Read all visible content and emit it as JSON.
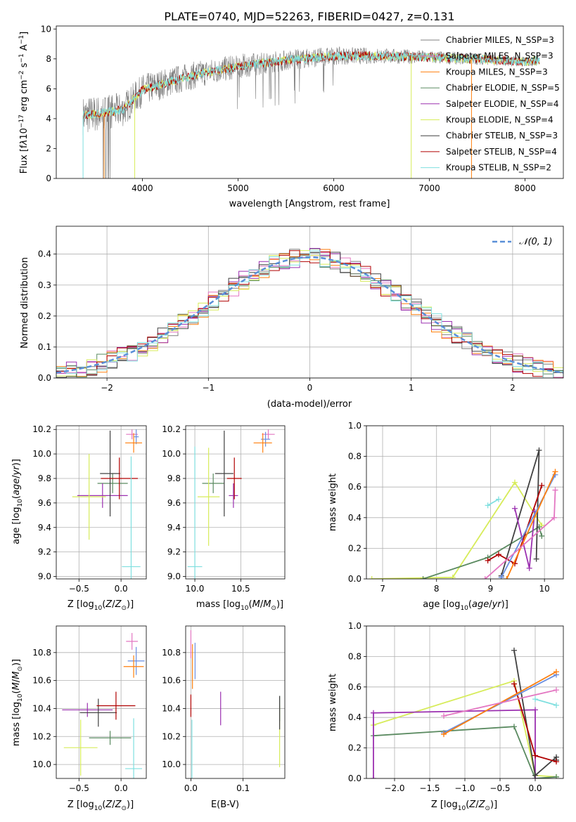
{
  "figure_title": "PLATE=0740, MJD=52263, FIBERID=0427, z=0.131",
  "colors": {
    "chabrier_miles": "#7f7f7f",
    "salpeter_miles": "#e377c2",
    "kroupa_miles": "#ff7f0e",
    "chabrier_elodie": "#5a8a60",
    "salpeter_elodie": "#9b30b0",
    "kroupa_elodie": "#d7ec5a",
    "chabrier_stelib": "#404040",
    "salpeter_stelib": "#b00000",
    "kroupa_stelib": "#7fdfdf",
    "chabrier_miles_alt": "#6a8ee0",
    "gauss": "#5a8fd8"
  },
  "chart_data": [
    {
      "id": "spectrum",
      "type": "line",
      "xlabel": "wavelength [Angstrom, rest frame]",
      "ylabel": "Flux [f_λ10^-17 erg cm^-2 s^-1 A^-1]",
      "xlim": [
        3100,
        8400
      ],
      "ylim": [
        0,
        10.2
      ],
      "xticks": [
        4000,
        5000,
        6000,
        7000,
        8000
      ],
      "yticks": [
        0,
        2,
        4,
        6,
        8,
        10
      ],
      "grid": false,
      "legend_position": "right",
      "x_start": 3380,
      "x_end": 8150,
      "continuum": [
        [
          3380,
          4.2
        ],
        [
          3600,
          4.4
        ],
        [
          3800,
          4.6
        ],
        [
          4000,
          5.9
        ],
        [
          4300,
          6.5
        ],
        [
          4600,
          7.0
        ],
        [
          5000,
          7.5
        ],
        [
          5500,
          7.9
        ],
        [
          6000,
          8.2
        ],
        [
          6500,
          8.2
        ],
        [
          7000,
          8.1
        ],
        [
          7500,
          8.0
        ],
        [
          8000,
          7.8
        ],
        [
          8150,
          7.9
        ]
      ],
      "legend": [
        {
          "label": "Chabrier MILES, N_SSP=3",
          "color_key": "chabrier_miles"
        },
        {
          "label": "Salpeter MILES, N_SSP=3",
          "color_key": "salpeter_miles"
        },
        {
          "label": "Kroupa MILES, N_SSP=3",
          "color_key": "kroupa_miles"
        },
        {
          "label": "Chabrier ELODIE, N_SSP=5",
          "color_key": "chabrier_elodie"
        },
        {
          "label": "Salpeter ELODIE, N_SSP=4",
          "color_key": "salpeter_elodie"
        },
        {
          "label": "Kroupa ELODIE, N_SSP=4",
          "color_key": "kroupa_elodie"
        },
        {
          "label": "Chabrier STELIB, N_SSP=3",
          "color_key": "chabrier_stelib"
        },
        {
          "label": "Salpeter STELIB, N_SSP=4",
          "color_key": "salpeter_stelib"
        },
        {
          "label": "Kroupa STELIB, N_SSP=2",
          "color_key": "kroupa_stelib"
        }
      ]
    },
    {
      "id": "residuals",
      "type": "area",
      "xlabel": "(data-model)/error",
      "ylabel": "Normed distribution",
      "xlim": [
        -2.5,
        2.5
      ],
      "ylim": [
        0,
        0.49
      ],
      "xticks": [
        -2,
        -1,
        0,
        1,
        2
      ],
      "xticklabels": [
        "−2",
        "−1",
        "0",
        "1",
        "2"
      ],
      "yticks": [
        0.0,
        0.1,
        0.2,
        0.3,
        0.4
      ],
      "yticklabels": [
        "0.0",
        "0.1",
        "0.2",
        "0.3",
        "0.4"
      ],
      "grid": true,
      "legend_position": "top-right",
      "gauss_label": "𝒩(0, 1)",
      "bin_width": 0.1,
      "amplitude": 0.39
    },
    {
      "id": "age_vs_Z",
      "type": "scatter",
      "xlabel": "Z [log10(Z/Z⊙)]",
      "ylabel": "age  [log10(age/yr)]",
      "xlim": [
        -0.77,
        0.3
      ],
      "ylim": [
        8.98,
        10.23
      ],
      "xticks": [
        -0.5,
        0.0
      ],
      "xticklabels": [
        "−0.5",
        "0.0"
      ],
      "yticks": [
        9.0,
        9.2,
        9.4,
        9.6,
        9.8,
        10.0,
        10.2
      ],
      "yticklabels": [
        "9.0",
        "9.2",
        "9.4",
        "9.6",
        "9.8",
        "10.0",
        "10.2"
      ],
      "grid": true,
      "points": [
        {
          "x": 0.13,
          "y": 10.16,
          "xerr": 0.07,
          "yerr": 0.04,
          "color_key": "salpeter_miles"
        },
        {
          "x": 0.18,
          "y": 10.14,
          "xerr": 0.03,
          "yerr": 0.06,
          "color_key": "chabrier_miles_alt"
        },
        {
          "x": 0.15,
          "y": 10.09,
          "xerr": 0.1,
          "yerr": 0.08,
          "color_key": "kroupa_miles"
        },
        {
          "x": -0.1,
          "y": 9.76,
          "xerr": 0.18,
          "yerr": 0.08,
          "color_key": "chabrier_elodie"
        },
        {
          "x": -0.22,
          "y": 9.66,
          "xerr": 0.3,
          "yerr": 0.1,
          "color_key": "salpeter_elodie"
        },
        {
          "x": -0.38,
          "y": 9.65,
          "xerr": 0.2,
          "yerr": 0.35,
          "color_key": "kroupa_elodie"
        },
        {
          "x": -0.13,
          "y": 9.84,
          "xerr": 0.12,
          "yerr": 0.35,
          "color_key": "chabrier_stelib"
        },
        {
          "x": -0.02,
          "y": 9.8,
          "xerr": 0.22,
          "yerr": 0.17,
          "color_key": "salpeter_stelib"
        },
        {
          "x": 0.12,
          "y": 9.08,
          "xerr": 0.11,
          "yerr": 0.9,
          "color_key": "kroupa_stelib"
        }
      ]
    },
    {
      "id": "age_vs_mass",
      "type": "scatter",
      "xlabel": "mass [log10(M/M⊙)]",
      "ylabel": "",
      "xlim": [
        9.9,
        10.98
      ],
      "ylim": [
        8.98,
        10.23
      ],
      "xticks": [
        10.0,
        10.5
      ],
      "xticklabels": [
        "10.0",
        "10.5"
      ],
      "yticks": [
        9.0,
        9.2,
        9.4,
        9.6,
        9.8,
        10.0,
        10.2
      ],
      "yticklabels": [
        "9.0",
        "9.2",
        "9.4",
        "9.6",
        "9.8",
        "10.0",
        "10.2"
      ],
      "grid": true,
      "points": [
        {
          "x": 10.8,
          "y": 10.16,
          "xerr": 0.07,
          "yerr": 0.04,
          "color_key": "salpeter_miles"
        },
        {
          "x": 10.77,
          "y": 10.12,
          "xerr": 0.05,
          "yerr": 0.06,
          "color_key": "chabrier_miles_alt"
        },
        {
          "x": 10.74,
          "y": 10.09,
          "xerr": 0.1,
          "yerr": 0.08,
          "color_key": "kroupa_miles"
        },
        {
          "x": 10.2,
          "y": 9.76,
          "xerr": 0.12,
          "yerr": 0.08,
          "color_key": "chabrier_elodie"
        },
        {
          "x": 10.42,
          "y": 9.66,
          "xerr": 0.05,
          "yerr": 0.1,
          "color_key": "salpeter_elodie"
        },
        {
          "x": 10.15,
          "y": 9.65,
          "xerr": 0.12,
          "yerr": 0.4,
          "color_key": "kroupa_elodie"
        },
        {
          "x": 10.32,
          "y": 9.84,
          "xerr": 0.1,
          "yerr": 0.35,
          "color_key": "chabrier_stelib"
        },
        {
          "x": 10.43,
          "y": 9.8,
          "xerr": 0.08,
          "yerr": 0.17,
          "color_key": "salpeter_stelib"
        },
        {
          "x": 10.0,
          "y": 9.08,
          "xerr": 0.08,
          "yerr": 0.98,
          "color_key": "kroupa_stelib"
        }
      ]
    },
    {
      "id": "weight_vs_age",
      "type": "line",
      "xlabel": "age  [log10(age/yr)]",
      "ylabel": "mass weight",
      "xlim": [
        6.7,
        10.35
      ],
      "ylim": [
        0,
        1.0
      ],
      "xticks": [
        7,
        8,
        9,
        10
      ],
      "xticklabels": [
        "7",
        "8",
        "9",
        "10"
      ],
      "yticks": [
        0.0,
        0.2,
        0.4,
        0.6,
        0.8,
        1.0
      ],
      "yticklabels": [
        "0.0",
        "0.2",
        "0.4",
        "0.6",
        "0.8",
        "1.0"
      ],
      "grid": true,
      "series": [
        {
          "color_key": "kroupa_elodie",
          "x": [
            6.8,
            8.3,
            9.45,
            9.95
          ],
          "y": [
            0.0,
            0.01,
            0.63,
            0.35
          ]
        },
        {
          "color_key": "chabrier_elodie",
          "x": [
            7.75,
            8.95,
            9.9,
            9.95
          ],
          "y": [
            0.0,
            0.14,
            0.34,
            0.28
          ]
        },
        {
          "color_key": "chabrier_stelib",
          "x": [
            9.2,
            9.9,
            9.85
          ],
          "y": [
            0.02,
            0.84,
            0.13
          ]
        },
        {
          "color_key": "salpeter_stelib",
          "x": [
            8.95,
            9.15,
            9.45,
            9.95
          ],
          "y": [
            0.12,
            0.16,
            0.1,
            0.61
          ]
        },
        {
          "color_key": "salpeter_elodie",
          "x": [
            9.45,
            9.72,
            9.82
          ],
          "y": [
            0.46,
            0.07,
            0.44
          ]
        },
        {
          "color_key": "chabrier_miles_alt",
          "x": [
            9.2,
            10.2
          ],
          "y": [
            0.01,
            0.68
          ]
        },
        {
          "color_key": "kroupa_miles",
          "x": [
            9.3,
            10.2
          ],
          "y": [
            0.0,
            0.7
          ]
        },
        {
          "color_key": "salpeter_miles",
          "x": [
            8.9,
            10.18,
            10.2
          ],
          "y": [
            0.0,
            0.4,
            0.58
          ]
        },
        {
          "color_key": "kroupa_stelib",
          "x": [
            8.95,
            9.15
          ],
          "y": [
            0.48,
            0.52
          ]
        }
      ]
    },
    {
      "id": "mass_vs_Z",
      "type": "scatter",
      "xlabel": "Z [log10(Z/Z⊙)]",
      "ylabel": "mass [log10(M/M⊙)]",
      "xlim": [
        -0.77,
        0.3
      ],
      "ylim": [
        9.9,
        10.99
      ],
      "xticks": [
        -0.5,
        0.0
      ],
      "xticklabels": [
        "−0.5",
        "0.0"
      ],
      "yticks": [
        10.0,
        10.2,
        10.4,
        10.6,
        10.8
      ],
      "yticklabels": [
        "10.0",
        "10.2",
        "10.4",
        "10.6",
        "10.8"
      ],
      "grid": true,
      "points": [
        {
          "x": 0.13,
          "y": 10.88,
          "xerr": 0.07,
          "yerr": 0.06,
          "color_key": "salpeter_miles"
        },
        {
          "x": 0.18,
          "y": 10.74,
          "xerr": 0.1,
          "yerr": 0.1,
          "color_key": "chabrier_miles_alt"
        },
        {
          "x": 0.15,
          "y": 10.7,
          "xerr": 0.12,
          "yerr": 0.08,
          "color_key": "kroupa_miles"
        },
        {
          "x": -0.13,
          "y": 10.19,
          "xerr": 0.25,
          "yerr": 0.05,
          "color_key": "chabrier_elodie"
        },
        {
          "x": -0.4,
          "y": 10.39,
          "xerr": 0.3,
          "yerr": 0.05,
          "color_key": "salpeter_elodie"
        },
        {
          "x": -0.48,
          "y": 10.12,
          "xerr": 0.2,
          "yerr": 0.2,
          "color_key": "kroupa_elodie"
        },
        {
          "x": -0.27,
          "y": 10.37,
          "xerr": 0.22,
          "yerr": 0.1,
          "color_key": "chabrier_stelib"
        },
        {
          "x": -0.06,
          "y": 10.42,
          "xerr": 0.23,
          "yerr": 0.1,
          "color_key": "salpeter_stelib"
        },
        {
          "x": 0.15,
          "y": 9.97,
          "xerr": 0.1,
          "yerr": 0.36,
          "color_key": "kroupa_stelib"
        }
      ]
    },
    {
      "id": "mass_vs_EBV",
      "type": "scatter",
      "xlabel": "E(B-V)",
      "ylabel": "",
      "xlim": [
        -0.01,
        0.18
      ],
      "ylim": [
        9.9,
        10.99
      ],
      "xticks": [
        0.0,
        0.1
      ],
      "xticklabels": [
        "0.0",
        "0.1"
      ],
      "yticks": [
        10.0,
        10.2,
        10.4,
        10.6,
        10.8
      ],
      "yticklabels": [
        "10.0",
        "10.2",
        "10.4",
        "10.6",
        "10.8"
      ],
      "grid": true,
      "points": [
        {
          "x": 0.0,
          "y": 10.86,
          "yerr": 0.1,
          "color_key": "salpeter_miles"
        },
        {
          "x": 0.008,
          "y": 10.74,
          "yerr": 0.13,
          "color_key": "chabrier_miles_alt"
        },
        {
          "x": 0.003,
          "y": 10.7,
          "yerr": 0.16,
          "color_key": "kroupa_miles"
        },
        {
          "x": 0.17,
          "y": 10.2,
          "yerr": 0.22,
          "color_key": "kroupa_elodie"
        },
        {
          "x": 0.17,
          "y": 10.4,
          "yerr": 0.09,
          "color_key": "chabrier_elodie"
        },
        {
          "x": 0.057,
          "y": 10.4,
          "yerr": 0.12,
          "color_key": "salpeter_elodie"
        },
        {
          "x": 0.17,
          "y": 10.37,
          "yerr": 0.12,
          "color_key": "chabrier_stelib"
        },
        {
          "x": 0.0,
          "y": 10.42,
          "yerr": 0.08,
          "color_key": "salpeter_stelib"
        },
        {
          "x": 0.002,
          "y": 10.02,
          "yerr": 0.3,
          "color_key": "kroupa_stelib"
        }
      ]
    },
    {
      "id": "weight_vs_Z",
      "type": "line",
      "xlabel": "Z [log10(Z/Z⊙)]",
      "ylabel": "mass weight",
      "xlim": [
        -2.4,
        0.4
      ],
      "ylim": [
        0,
        1.0
      ],
      "xticks": [
        -2.0,
        -1.5,
        -1.0,
        -0.5,
        0.0
      ],
      "xticklabels": [
        "−2.0",
        "−1.5",
        "−1.0",
        "−0.5",
        "0.0"
      ],
      "yticks": [
        0.0,
        0.2,
        0.4,
        0.6,
        0.8,
        1.0
      ],
      "yticklabels": [
        "0.0",
        "0.2",
        "0.4",
        "0.6",
        "0.8",
        "1.0"
      ],
      "grid": true,
      "series": [
        {
          "color_key": "kroupa_elodie",
          "x": [
            -2.3,
            -0.3,
            0.0,
            0.3
          ],
          "y": [
            0.35,
            0.64,
            0.02,
            0.01
          ]
        },
        {
          "color_key": "chabrier_elodie",
          "x": [
            -2.3,
            -0.3,
            0.0,
            0.3
          ],
          "y": [
            0.28,
            0.34,
            0.0,
            0.01
          ]
        },
        {
          "color_key": "salpeter_elodie",
          "x": [
            -2.3,
            -2.3,
            0.0,
            0.0
          ],
          "y": [
            0.0,
            0.43,
            0.45,
            0.0
          ]
        },
        {
          "color_key": "chabrier_stelib",
          "x": [
            -0.3,
            0.0,
            0.3,
            0.3
          ],
          "y": [
            0.84,
            0.02,
            0.14,
            0.12
          ]
        },
        {
          "color_key": "salpeter_stelib",
          "x": [
            -0.3,
            0.0,
            0.3
          ],
          "y": [
            0.62,
            0.15,
            0.11
          ]
        },
        {
          "color_key": "chabrier_miles_alt",
          "x": [
            -1.3,
            0.3
          ],
          "y": [
            0.3,
            0.68
          ]
        },
        {
          "color_key": "kroupa_miles",
          "x": [
            -1.3,
            0.3
          ],
          "y": [
            0.29,
            0.7
          ]
        },
        {
          "color_key": "salpeter_miles",
          "x": [
            -1.3,
            0.3
          ],
          "y": [
            0.41,
            0.58
          ]
        },
        {
          "color_key": "kroupa_stelib",
          "x": [
            0.0,
            0.3
          ],
          "y": [
            0.52,
            0.48
          ]
        }
      ]
    }
  ]
}
